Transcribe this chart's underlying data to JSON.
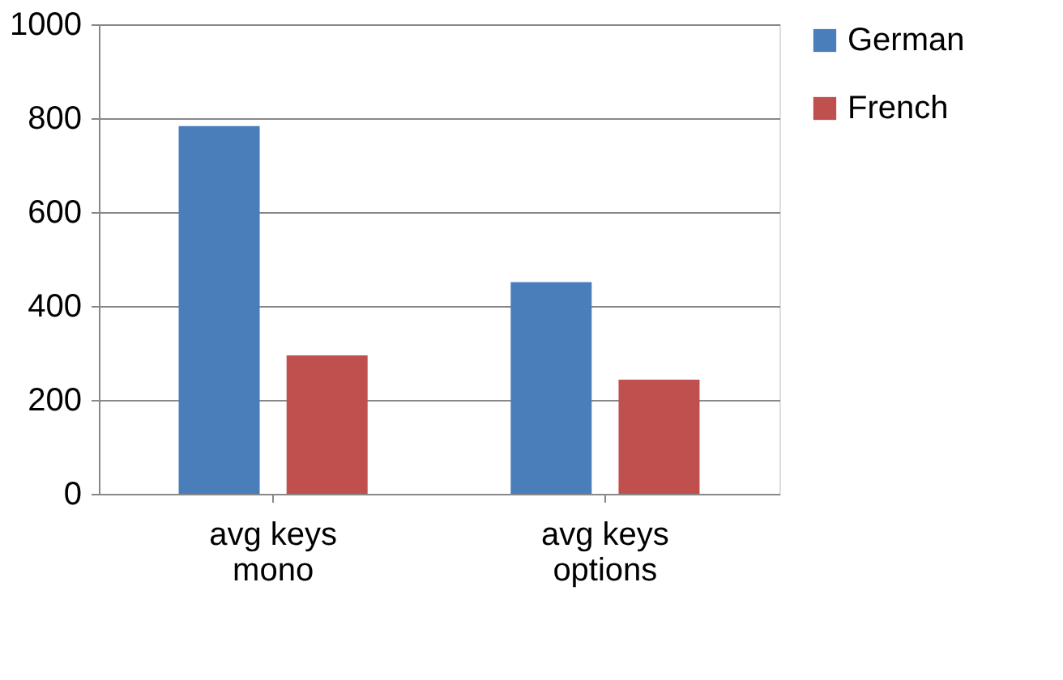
{
  "chart_data": {
    "type": "bar",
    "categories": [
      "avg keys mono",
      "avg keys options"
    ],
    "series": [
      {
        "name": "German",
        "color": "#4a7ebb",
        "values": [
          783,
          451
        ]
      },
      {
        "name": "French",
        "color": "#c0504d",
        "values": [
          295,
          243
        ]
      }
    ],
    "ylim": [
      0,
      1000
    ],
    "yticks": [
      0,
      200,
      400,
      600,
      800,
      1000
    ],
    "grid": "y",
    "legend": "right"
  }
}
